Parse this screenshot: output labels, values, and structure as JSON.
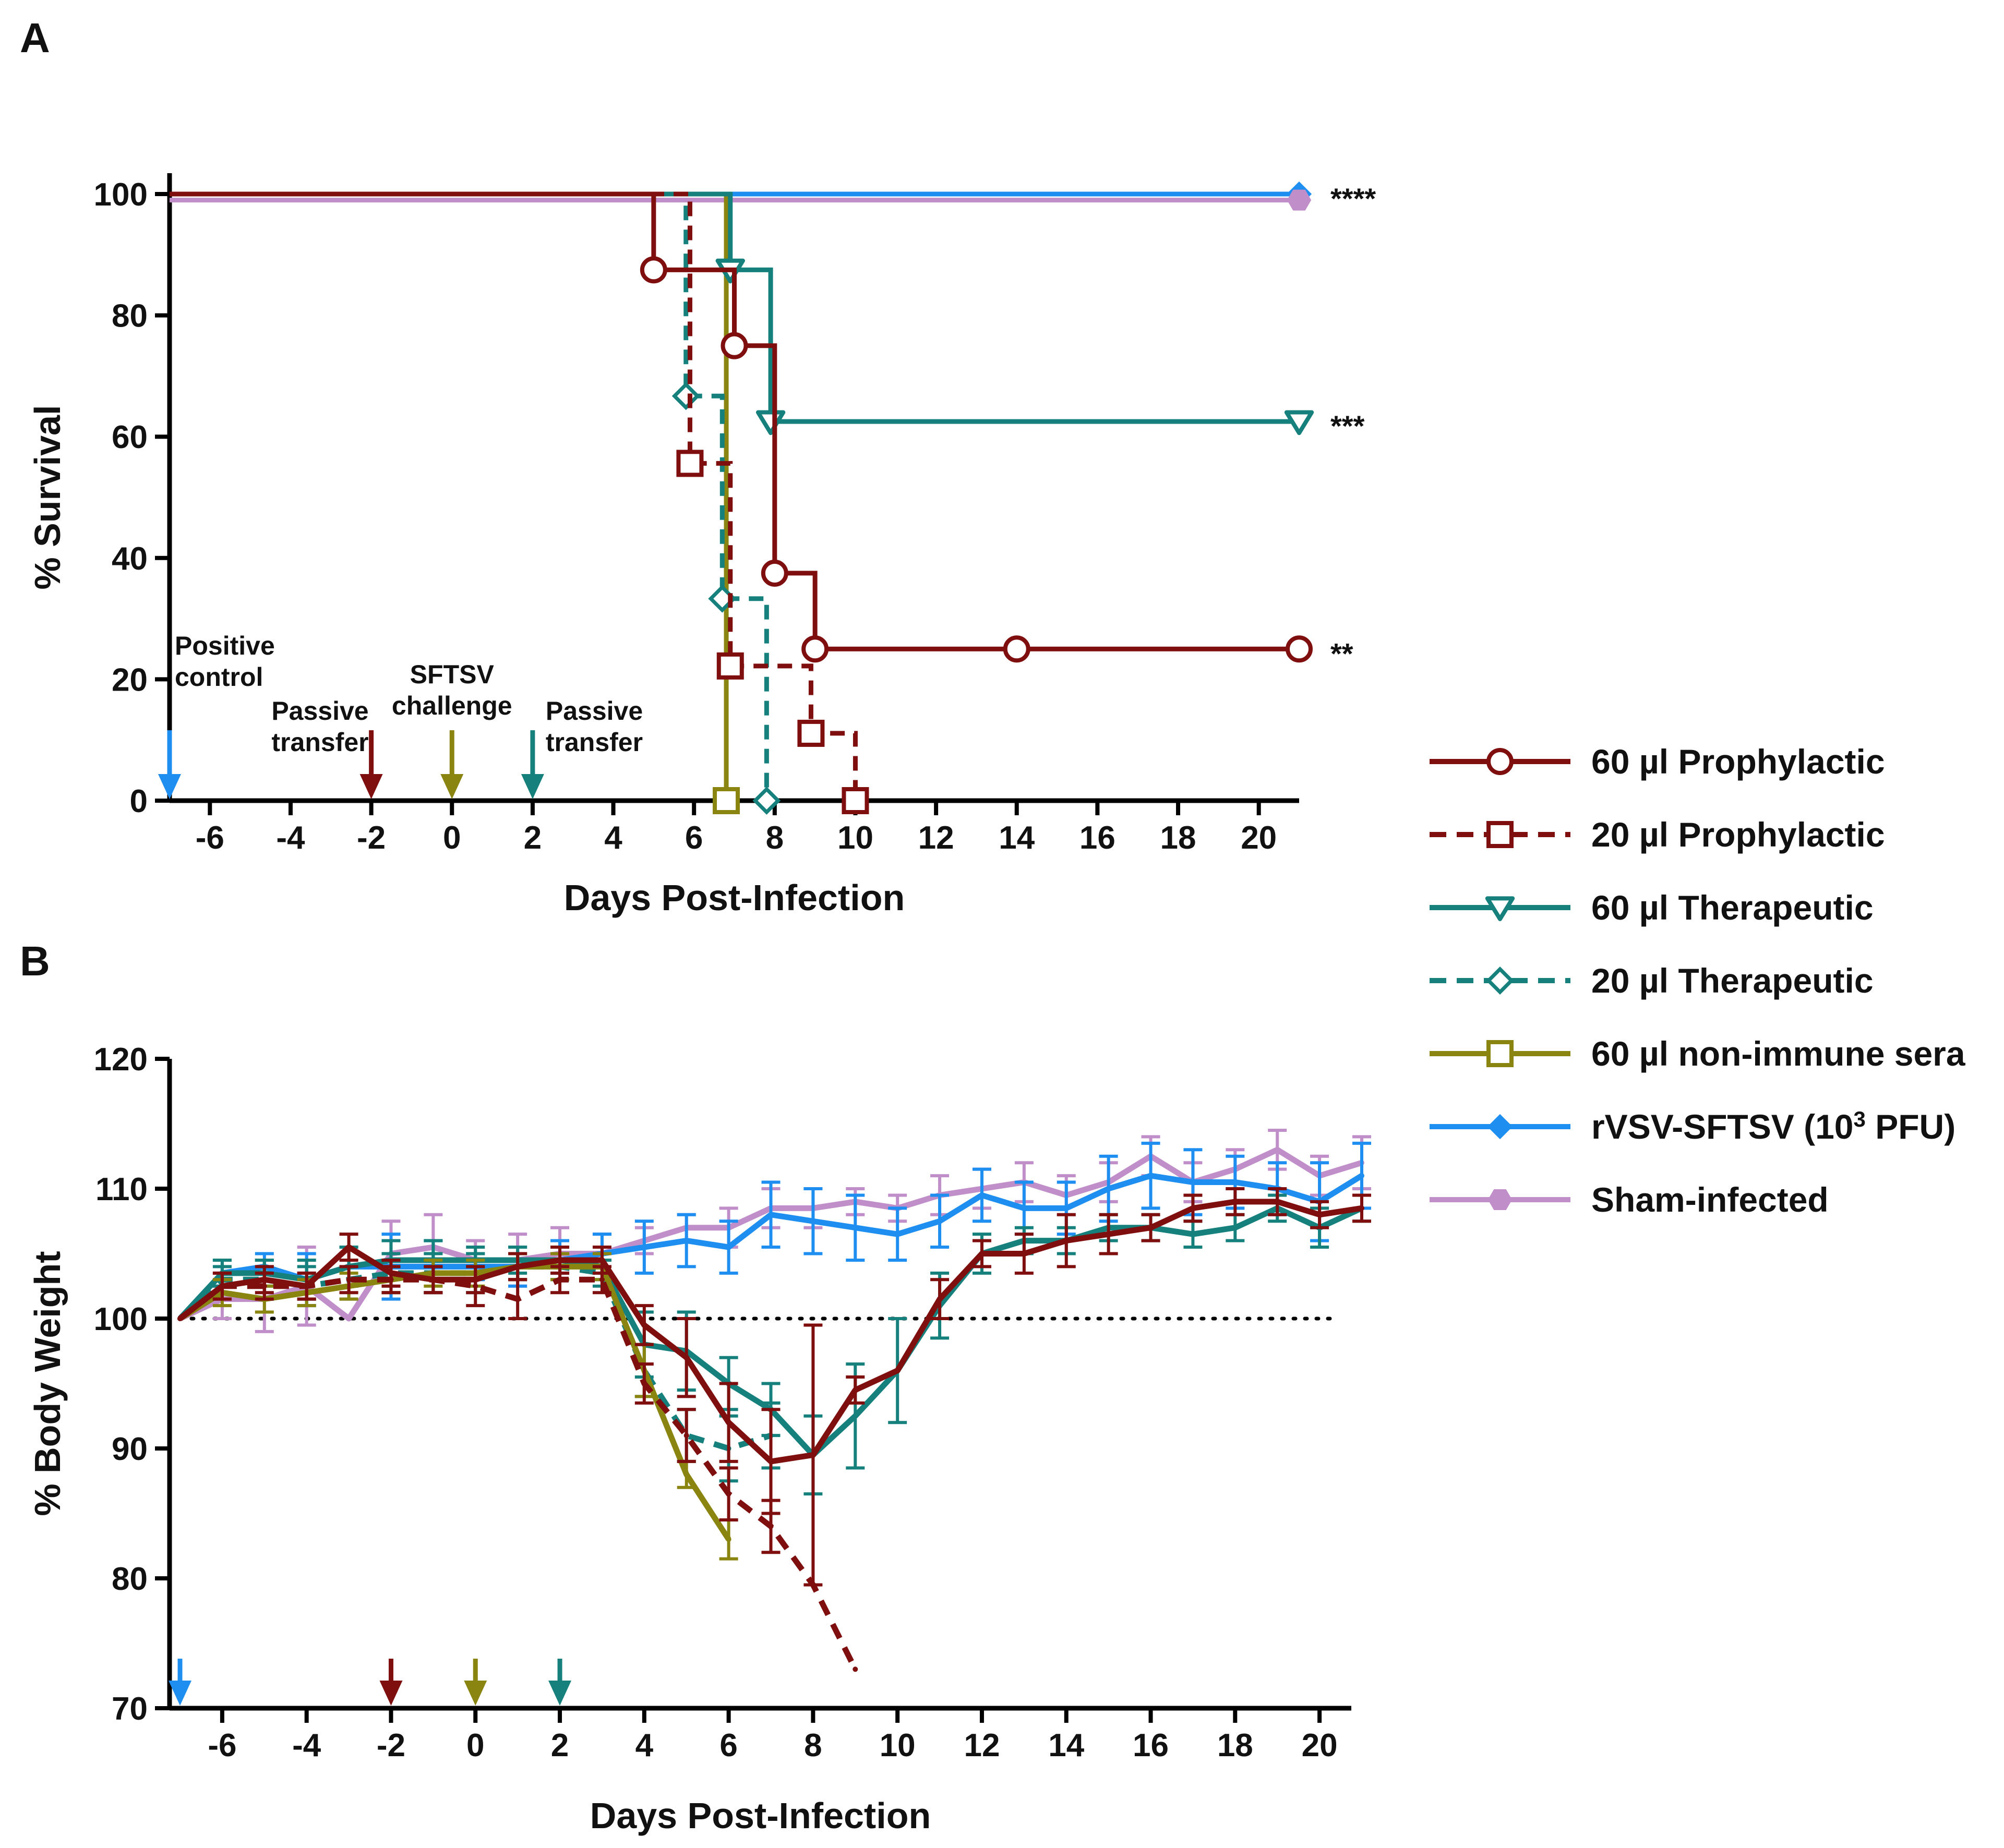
{
  "panels": {
    "a_label": "A",
    "b_label": "B"
  },
  "colors": {
    "prophylactic": "#7f0e0e",
    "therapeutic": "#16807c",
    "nonimmune": "#8a8410",
    "rvsv": "#1e8ff0",
    "sham": "#c08ec9"
  },
  "legend": [
    {
      "key": "p60",
      "label": "60 µl Prophylactic",
      "color": "#7f0e0e",
      "dash": false,
      "marker": "circle"
    },
    {
      "key": "p20",
      "label": "20 µl Prophylactic",
      "color": "#7f0e0e",
      "dash": true,
      "marker": "square"
    },
    {
      "key": "t60",
      "label": "60 µl Therapeutic",
      "color": "#16807c",
      "dash": false,
      "marker": "triangle-down"
    },
    {
      "key": "t20",
      "label": "20 µl Therapeutic",
      "color": "#16807c",
      "dash": true,
      "marker": "diamond"
    },
    {
      "key": "n60",
      "label": "60 µl non-immune sera",
      "color": "#8a8410",
      "dash": false,
      "marker": "square"
    },
    {
      "key": "rvsv",
      "label_prefix": "rVSV-SFTSV (10",
      "label_sup": "3",
      "label_suffix": " PFU)",
      "color": "#1e8ff0",
      "dash": false,
      "marker": "diamond-filled"
    },
    {
      "key": "sham",
      "label": "Sham-infected",
      "color": "#c08ec9",
      "dash": false,
      "marker": "hexagon-filled"
    }
  ],
  "chart_data": [
    {
      "type": "line",
      "subtype": "kaplan-meier survival",
      "title": "",
      "xlabel": "Days Post-Infection",
      "ylabel": "% Survival",
      "xlim": [
        -7,
        21
      ],
      "ylim": [
        0,
        100
      ],
      "xticks": [
        -6,
        -4,
        -2,
        0,
        2,
        4,
        6,
        8,
        10,
        12,
        14,
        16,
        18,
        20
      ],
      "yticks": [
        0,
        20,
        40,
        60,
        80,
        100
      ],
      "series": [
        {
          "name": "rVSV-SFTSV (10^3 PFU)",
          "key": "rvsv",
          "x": [
            -7,
            21
          ],
          "y": [
            100,
            100
          ],
          "markers_at": [
            [
              21,
              100
            ]
          ]
        },
        {
          "name": "Sham-infected",
          "key": "sham",
          "x": [
            -7,
            21
          ],
          "y": [
            99,
            99
          ],
          "markers_at": [
            [
              21,
              99
            ]
          ]
        },
        {
          "name": "60 µl non-immune sera",
          "key": "n60",
          "x": [
            -7,
            6.8,
            6.8
          ],
          "y": [
            100,
            100,
            0
          ],
          "markers_at": [
            [
              6.8,
              0
            ]
          ]
        },
        {
          "name": "20 µl Therapeutic",
          "key": "t20",
          "x": [
            -7,
            5.8,
            5.8,
            6.7,
            6.7,
            7.8,
            7.8
          ],
          "y": [
            100,
            100,
            66.7,
            66.7,
            33.3,
            33.3,
            0
          ],
          "markers_at": [
            [
              5.8,
              66.7
            ],
            [
              6.7,
              33.3
            ],
            [
              7.8,
              0
            ]
          ]
        },
        {
          "name": "60 µl Therapeutic",
          "key": "t60",
          "x": [
            -7,
            6.9,
            6.9,
            7.9,
            7.9,
            21
          ],
          "y": [
            100,
            100,
            87.5,
            87.5,
            62.5,
            62.5
          ],
          "markers_at": [
            [
              6.9,
              87.5
            ],
            [
              7.9,
              62.5
            ],
            [
              21,
              62.5
            ]
          ]
        },
        {
          "name": "20 µl Prophylactic",
          "key": "p20",
          "x": [
            -7,
            5.9,
            5.9,
            6.9,
            6.9,
            8.9,
            8.9,
            10,
            10
          ],
          "y": [
            100,
            100,
            55.6,
            55.6,
            22.2,
            22.2,
            11.1,
            11.1,
            0
          ],
          "markers_at": [
            [
              5.9,
              55.6
            ],
            [
              6.9,
              22.2
            ],
            [
              8.9,
              11.1
            ],
            [
              10,
              0
            ]
          ]
        },
        {
          "name": "60 µl Prophylactic",
          "key": "p60",
          "x": [
            -7,
            5,
            5,
            7,
            7,
            8,
            8,
            9,
            9,
            21
          ],
          "y": [
            100,
            100,
            87.5,
            87.5,
            75,
            75,
            37.5,
            37.5,
            25,
            25
          ],
          "markers_at": [
            [
              5,
              87.5
            ],
            [
              7,
              75
            ],
            [
              8,
              37.5
            ],
            [
              9,
              25
            ],
            [
              14,
              25
            ],
            [
              21,
              25
            ]
          ]
        }
      ],
      "annotations": [
        {
          "text": "****",
          "x": 21,
          "y": 100
        },
        {
          "text": "***",
          "x": 21,
          "y": 62.5
        },
        {
          "text": "**",
          "x": 21,
          "y": 25
        }
      ],
      "event_arrows": [
        {
          "day": -7,
          "key": "rvsv",
          "label_lines": [
            "Positive",
            "control"
          ]
        },
        {
          "day": -2,
          "key": "p60",
          "label_lines": [
            "Passive",
            "transfer"
          ]
        },
        {
          "day": 0,
          "key": "n60",
          "label_lines": [
            "SFTSV",
            "challenge"
          ]
        },
        {
          "day": 2,
          "key": "t60",
          "label_lines": [
            "Passive",
            "transfer"
          ]
        }
      ]
    },
    {
      "type": "line",
      "subtype": "body weight with error bars",
      "title": "",
      "xlabel": "Days Post-Infection",
      "ylabel": "% Body Weight",
      "xlim": [
        -7,
        21
      ],
      "ylim": [
        70,
        120
      ],
      "xticks": [
        -6,
        -4,
        -2,
        0,
        2,
        4,
        6,
        8,
        10,
        12,
        14,
        16,
        18,
        20
      ],
      "yticks": [
        70,
        80,
        90,
        100,
        110,
        120
      ],
      "reference_line": 100,
      "series": [
        {
          "name": "Sham-infected",
          "key": "sham",
          "x": [
            -7,
            -6,
            -5,
            -4,
            -3,
            -2,
            -1,
            0,
            1,
            2,
            3,
            4,
            5,
            6,
            7,
            8,
            9,
            10,
            11,
            12,
            13,
            14,
            15,
            16,
            17,
            18,
            19,
            20,
            21
          ],
          "y": [
            100,
            101.5,
            101.5,
            102.5,
            100,
            105,
            105.5,
            104.5,
            104.5,
            105,
            105,
            106,
            107,
            107,
            108.5,
            108.5,
            109,
            108.5,
            109.5,
            110,
            110.5,
            109.5,
            110.5,
            112.5,
            110.5,
            111.5,
            113,
            111,
            112
          ],
          "err": [
            0,
            1.5,
            2.5,
            3,
            0,
            2.5,
            2.5,
            1.5,
            2,
            2,
            1.5,
            1,
            1,
            1.5,
            1.5,
            1.5,
            1,
            1,
            1.5,
            1.5,
            1.5,
            1.5,
            1.5,
            1.5,
            1.5,
            1.5,
            1.5,
            1.5,
            2
          ]
        },
        {
          "name": "rVSV-SFTSV (10^3 PFU)",
          "key": "rvsv",
          "x": [
            -7,
            -6,
            -5,
            -4,
            -3,
            -2,
            -1,
            0,
            1,
            2,
            3,
            4,
            5,
            6,
            7,
            8,
            9,
            10,
            11,
            12,
            13,
            14,
            15,
            16,
            17,
            18,
            19,
            20,
            21
          ],
          "y": [
            100,
            103.5,
            104,
            103,
            104,
            104,
            104,
            104,
            104,
            104.5,
            105,
            105.5,
            106,
            105.5,
            108,
            107.5,
            107,
            106.5,
            107.5,
            109.5,
            108.5,
            108.5,
            110,
            111,
            110.5,
            110.5,
            110,
            109,
            111
          ],
          "err": [
            0,
            1,
            1,
            2,
            1.5,
            2.5,
            2,
            1,
            1.5,
            1.5,
            1.5,
            2,
            2,
            2,
            2.5,
            2.5,
            2.5,
            2,
            2,
            2,
            2,
            2,
            2.5,
            2.5,
            2.5,
            2,
            2,
            3,
            2.5
          ]
        },
        {
          "name": "60 µl Therapeutic",
          "key": "t60",
          "x": [
            -7,
            -6,
            -5,
            -4,
            -3,
            -2,
            -1,
            0,
            1,
            2,
            3,
            4,
            5,
            6,
            7,
            8,
            9,
            10,
            11,
            12,
            13,
            14,
            15,
            16,
            17,
            18,
            19,
            20,
            21
          ],
          "y": [
            100,
            103.5,
            103.5,
            103,
            104,
            104.5,
            104.5,
            104.5,
            104.5,
            104.5,
            104,
            98,
            97.5,
            95,
            93,
            89.5,
            92.5,
            96,
            101,
            105,
            106,
            106,
            107,
            107,
            106.5,
            107,
            108.5,
            107,
            108.5
          ],
          "err": [
            0,
            1,
            1,
            1.5,
            1.5,
            1.5,
            1.5,
            1,
            1,
            1,
            1,
            2.5,
            3,
            2,
            2,
            3,
            4,
            4,
            2.5,
            1.5,
            1,
            1,
            1,
            1,
            1,
            1,
            1,
            1.5,
            1
          ]
        },
        {
          "name": "20 µl Therapeutic",
          "key": "t20",
          "x": [
            -7,
            -6,
            -5,
            -4,
            -3,
            -2,
            -1,
            0,
            1,
            2,
            3,
            4,
            5,
            6,
            7
          ],
          "y": [
            100,
            103,
            103,
            102.5,
            103,
            103.5,
            103.5,
            103.5,
            104,
            104,
            103.5,
            96,
            91,
            90,
            91
          ],
          "err": [
            0,
            1,
            1.5,
            1.5,
            1.5,
            1.5,
            1.5,
            1.5,
            1,
            1,
            1,
            2,
            2,
            2.5,
            2.5
          ]
        },
        {
          "name": "60 µl non-immune sera",
          "key": "n60",
          "x": [
            -7,
            -6,
            -5,
            -4,
            -3,
            -2,
            -1,
            0,
            1,
            2,
            3,
            4,
            5,
            6
          ],
          "y": [
            100,
            102,
            101.5,
            102,
            102.5,
            103,
            103.5,
            103.5,
            104,
            104,
            104,
            96,
            88,
            83
          ],
          "err": [
            0,
            1,
            1,
            1,
            1,
            1,
            1,
            1,
            1,
            1,
            1,
            2,
            1,
            1.5
          ]
        },
        {
          "name": "20 µl Prophylactic",
          "key": "p20",
          "x": [
            -7,
            -6,
            -5,
            -4,
            -3,
            -2,
            -1,
            0,
            1,
            2,
            3,
            4,
            5,
            6,
            7,
            8,
            9
          ],
          "y": [
            100,
            102.5,
            102.5,
            102.5,
            103,
            103,
            103,
            102.5,
            101.5,
            103,
            103,
            95,
            91,
            86.5,
            84,
            79.5,
            73
          ],
          "err": [
            0,
            1,
            1,
            1,
            1,
            1,
            1,
            1.5,
            1.5,
            1,
            1,
            1.5,
            2,
            2,
            2,
            0,
            0
          ]
        },
        {
          "name": "60 µl Prophylactic",
          "key": "p60",
          "x": [
            -7,
            -6,
            -5,
            -4,
            -3,
            -2,
            -1,
            0,
            1,
            2,
            3,
            4,
            5,
            6,
            7,
            8,
            9,
            10,
            11,
            12,
            13,
            14,
            15,
            16,
            17,
            18,
            19,
            20,
            21
          ],
          "y": [
            100,
            102.5,
            103,
            102.5,
            105.5,
            103.5,
            103,
            103,
            104,
            104.5,
            104.5,
            99.5,
            97,
            92,
            89,
            89.5,
            94.5,
            96,
            101.5,
            105,
            105,
            106,
            106.5,
            107,
            108.5,
            109,
            109,
            108,
            108.5
          ],
          "err": [
            0,
            1,
            1,
            1,
            1,
            1,
            1,
            1,
            1,
            1,
            1,
            1.5,
            3,
            3,
            4,
            10,
            1,
            0,
            1.5,
            1,
            1.5,
            2,
            1.5,
            1,
            1,
            1,
            1,
            1,
            1
          ]
        }
      ],
      "event_arrows": [
        {
          "day": -7,
          "key": "rvsv"
        },
        {
          "day": -2,
          "key": "p60"
        },
        {
          "day": 0,
          "key": "n60"
        },
        {
          "day": 2,
          "key": "t60"
        }
      ]
    }
  ]
}
